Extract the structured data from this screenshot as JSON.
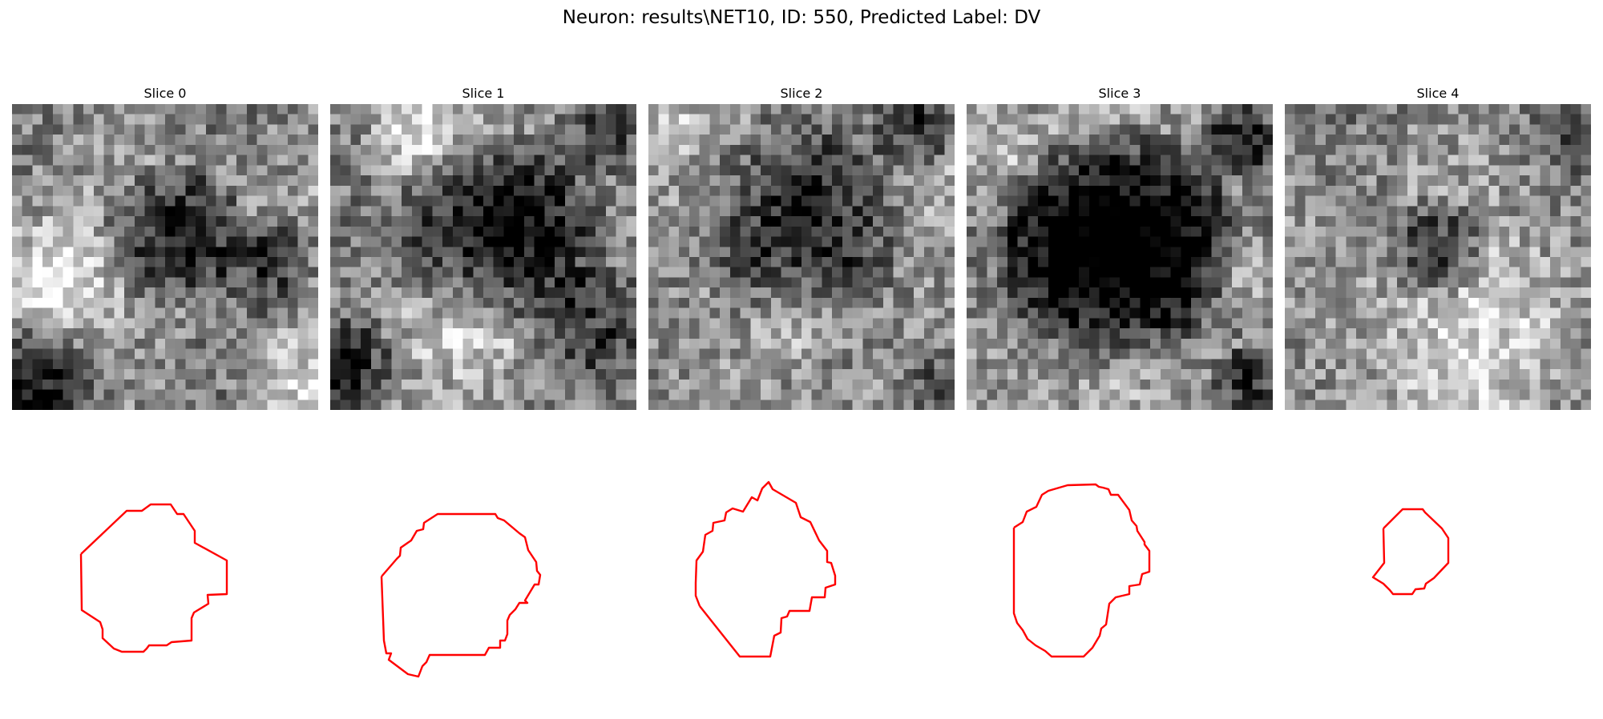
{
  "figure": {
    "title": "Neuron: results\\NET10, ID: 550, Predicted Label: DV",
    "colormap": "gray",
    "contour_color": "#ff0000"
  },
  "slices": [
    {
      "title": "Slice 0",
      "contour_mask": "left-cell contour",
      "content": "grayscale microscopy slice"
    },
    {
      "title": "Slice 1",
      "contour_mask": "large round contour",
      "content": "grayscale microscopy slice"
    },
    {
      "title": "Slice 2",
      "contour_mask": "round contour with notch",
      "content": "grayscale microscopy slice"
    },
    {
      "title": "Slice 3",
      "contour_mask": "dark-cell contour",
      "content": "grayscale microscopy slice"
    },
    {
      "title": "Slice 4",
      "contour_mask": "small octagonal contour",
      "content": "grayscale microscopy slice"
    }
  ]
}
